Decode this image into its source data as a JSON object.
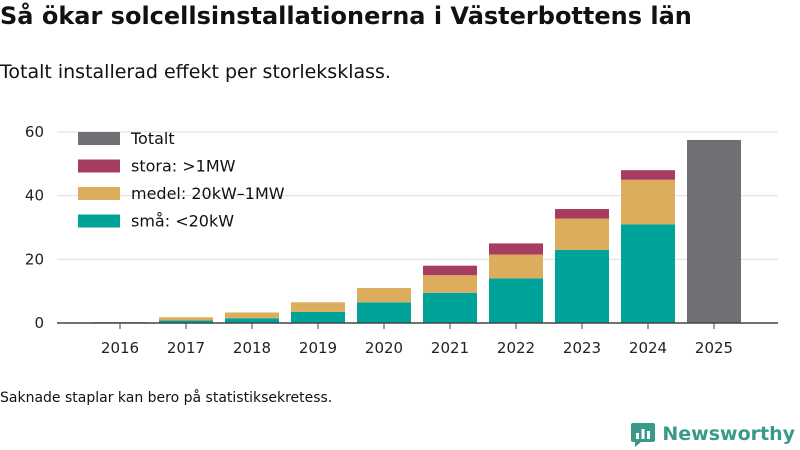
{
  "header": {
    "title": "Så ökar solcellsinstallationerna i Västerbottens län",
    "subtitle": "Totalt installerad effekt per storleksklass."
  },
  "footer": {
    "note": "Saknade staplar kan bero på statistiksekretess.",
    "brand": "Newsworthy",
    "brand_color": "#3a9a8a"
  },
  "chart_data": {
    "type": "bar",
    "stacked": true,
    "categories": [
      "2016",
      "2017",
      "2018",
      "2019",
      "2020",
      "2021",
      "2022",
      "2023",
      "2024",
      "2025"
    ],
    "series": [
      {
        "name": "små: <20kW",
        "color": "#00a39a",
        "values": [
          0.2,
          0.8,
          1.5,
          3.5,
          6.5,
          9.5,
          14,
          23,
          31,
          null
        ]
      },
      {
        "name": "medel: 20kW–1MW",
        "color": "#dbad5c",
        "values": [
          0.1,
          1.0,
          1.8,
          3.0,
          4.5,
          5.5,
          7.5,
          9.8,
          14,
          null
        ]
      },
      {
        "name": "stora: >1MW",
        "color": "#a63d5e",
        "values": [
          0,
          0,
          0,
          0,
          0,
          3.0,
          3.5,
          3.0,
          3.0,
          null
        ]
      },
      {
        "name": "Totalt",
        "color": "#707074",
        "values": [
          null,
          null,
          null,
          null,
          null,
          null,
          null,
          null,
          null,
          57.5
        ]
      }
    ],
    "legend_order": [
      "Totalt",
      "stora: >1MW",
      "medel: 20kW–1MW",
      "små: <20kW"
    ],
    "legend_position": "top-left",
    "y_ticks": [
      "0",
      "20",
      "40",
      "60"
    ],
    "ylim": [
      0,
      60
    ],
    "grid": true,
    "xlabel": "",
    "ylabel": ""
  }
}
